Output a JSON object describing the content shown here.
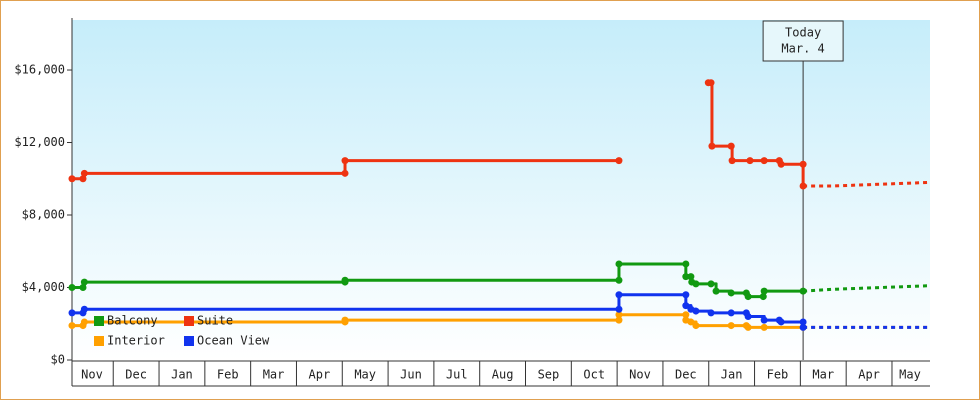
{
  "chart_data": {
    "type": "step",
    "xlim": [
      0.1,
      18.83
    ],
    "ylim": [
      0,
      18760
    ],
    "yticks": [
      {
        "value": 0,
        "label": "$0"
      },
      {
        "value": 4000,
        "label": "$4,000"
      },
      {
        "value": 8000,
        "label": "$8,000"
      },
      {
        "value": 12000,
        "label": "$12,000"
      },
      {
        "value": 16000,
        "label": "$16,000"
      }
    ],
    "xticks": [
      {
        "value": 0.5,
        "label": "Nov"
      },
      {
        "value": 1.5,
        "label": "Dec"
      },
      {
        "value": 2.5,
        "label": "Jan"
      },
      {
        "value": 3.5,
        "label": "Feb"
      },
      {
        "value": 4.5,
        "label": "Mar"
      },
      {
        "value": 5.5,
        "label": "Apr"
      },
      {
        "value": 6.5,
        "label": "May"
      },
      {
        "value": 7.5,
        "label": "Jun"
      },
      {
        "value": 8.5,
        "label": "Jul"
      },
      {
        "value": 9.5,
        "label": "Aug"
      },
      {
        "value": 10.5,
        "label": "Sep"
      },
      {
        "value": 11.5,
        "label": "Oct"
      },
      {
        "value": 12.5,
        "label": "Nov"
      },
      {
        "value": 13.5,
        "label": "Dec"
      },
      {
        "value": 14.5,
        "label": "Jan"
      },
      {
        "value": 15.5,
        "label": "Feb"
      },
      {
        "value": 16.5,
        "label": "Mar"
      },
      {
        "value": 17.5,
        "label": "Apr"
      },
      {
        "value": 18.5,
        "label": "May"
      }
    ],
    "legend": "lower left",
    "annotation": {
      "x": 16.06,
      "lines": [
        "Today",
        "Mar. 4"
      ]
    },
    "series": [
      {
        "name": "Balcony",
        "color": "#119911",
        "x": [
          0.1,
          0.34,
          0.37,
          6.06,
          6.06,
          12.04,
          12.04,
          13.5,
          13.5,
          13.61,
          13.63,
          13.72,
          14.05,
          14.16,
          14.49,
          14.82,
          14.86,
          15.19,
          15.21,
          16.06
        ],
        "values": [
          4000,
          4000,
          4300,
          4300,
          4400,
          4400,
          5300,
          5300,
          4600,
          4600,
          4300,
          4200,
          4200,
          3800,
          3700,
          3700,
          3500,
          3500,
          3800,
          3800
        ],
        "projection": {
          "x": [
            16.06,
            16.7,
            18.83
          ],
          "values": [
            3800,
            3900,
            4100
          ]
        }
      },
      {
        "name": "Suite",
        "color": "#ee3311",
        "x": [
          0.1,
          0.34,
          0.37,
          6.06,
          6.06,
          12.04,
          null,
          13.99,
          14.05,
          14.07,
          14.49,
          14.51,
          14.9,
          15.21,
          15.54,
          15.58,
          16.06,
          16.06
        ],
        "values": [
          10000,
          10000,
          10300,
          10300,
          11000,
          11000,
          null,
          15300,
          15300,
          11800,
          11800,
          11000,
          11000,
          11000,
          11000,
          10800,
          10800,
          9600
        ],
        "projection": {
          "x": [
            16.06,
            16.7,
            18.83
          ],
          "values": [
            9600,
            9600,
            9800
          ]
        }
      },
      {
        "name": "Interior",
        "color": "#ffa000",
        "x": [
          0.1,
          0.34,
          0.37,
          6.06,
          6.06,
          12.04,
          12.04,
          13.5,
          13.5,
          13.61,
          13.72,
          14.49,
          14.82,
          14.86,
          15.21,
          16.06
        ],
        "values": [
          1900,
          1900,
          2100,
          2100,
          2200,
          2200,
          2500,
          2500,
          2200,
          2100,
          1900,
          1900,
          1900,
          1800,
          1800,
          1800
        ],
        "projection": {
          "x": [
            16.06,
            18.83
          ],
          "values": [
            1800,
            1800
          ]
        }
      },
      {
        "name": "Ocean View",
        "color": "#1133ee",
        "x": [
          0.1,
          0.34,
          0.37,
          12.04,
          12.04,
          13.5,
          13.5,
          13.61,
          13.72,
          14.05,
          14.49,
          14.82,
          14.86,
          15.21,
          15.54,
          15.58,
          16.06,
          16.06
        ],
        "values": [
          2600,
          2600,
          2800,
          2800,
          3600,
          3600,
          3000,
          2800,
          2700,
          2600,
          2600,
          2600,
          2400,
          2200,
          2200,
          2100,
          2100,
          1800
        ],
        "projection": {
          "x": [
            16.06,
            18.83
          ],
          "values": [
            1800,
            1800
          ]
        }
      }
    ]
  }
}
